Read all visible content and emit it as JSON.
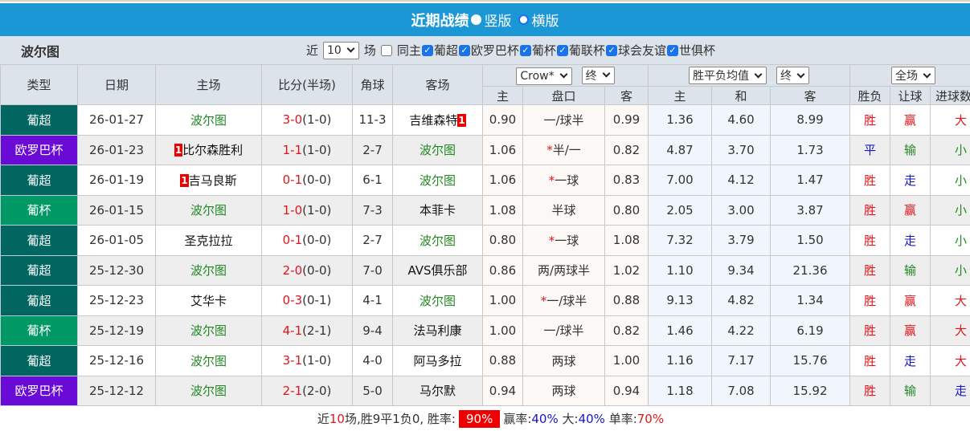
{
  "header": {
    "title": "近期战绩",
    "view_vertical": "竖版",
    "view_horizontal": "横版"
  },
  "filter": {
    "team": "波尔图",
    "recent_label": "近",
    "recent_value": "10",
    "matches_label": "场",
    "same_home": "同主",
    "competitions": [
      "葡超",
      "欧罗巴杯",
      "葡杯",
      "葡联杯",
      "球会友谊",
      "世俱杯"
    ]
  },
  "columns": {
    "type": "类型",
    "date": "日期",
    "home": "主场",
    "score": "比分(半场)",
    "corner": "角球",
    "away": "客场",
    "odds_company": "Crow*",
    "odds_stage": "终",
    "euro_select": "胜平负均值",
    "euro_stage": "终",
    "scope": "全场",
    "odds_home": "主",
    "handicap": "盘口",
    "odds_away": "客",
    "euro_home": "主",
    "euro_draw": "和",
    "euro_away": "客",
    "result": "胜负",
    "ah_result": "让球",
    "goals": "进球数"
  },
  "type_colors": {
    "葡超": "#00665f",
    "欧罗巴杯": "#6a0ad6",
    "葡杯": "#009966"
  },
  "rows": [
    {
      "type": "葡超",
      "date": "26-01-27",
      "home": "波尔图",
      "home_rank": "",
      "score": "3-0",
      "ht": "(1-0)",
      "corner": "11-3",
      "away": "吉维森特",
      "away_rank": "1",
      "oh": "0.90",
      "hc": "一/球半",
      "hc_star": "",
      "oa": "0.99",
      "eh": "1.36",
      "ed": "4.60",
      "ea": "8.99",
      "res": "胜",
      "ah": "赢",
      "ou": "大"
    },
    {
      "type": "欧罗巴杯",
      "date": "26-01-23",
      "home": "比尔森胜利",
      "home_rank": "1",
      "score": "1-1",
      "ht": "(1-0)",
      "corner": "2-7",
      "away": "波尔图",
      "away_rank": "",
      "oh": "1.06",
      "hc": "半/一",
      "hc_star": "*",
      "oa": "0.82",
      "eh": "4.87",
      "ed": "3.70",
      "ea": "1.73",
      "res": "平",
      "ah": "输",
      "ou": "小"
    },
    {
      "type": "葡超",
      "date": "26-01-19",
      "home": "吉马良斯",
      "home_rank": "1",
      "score": "0-1",
      "ht": "(0-0)",
      "corner": "6-1",
      "away": "波尔图",
      "away_rank": "",
      "oh": "1.06",
      "hc": "一球",
      "hc_star": "*",
      "oa": "0.83",
      "eh": "7.00",
      "ed": "4.12",
      "ea": "1.47",
      "res": "胜",
      "ah": "走",
      "ou": "小"
    },
    {
      "type": "葡杯",
      "date": "26-01-15",
      "home": "波尔图",
      "home_rank": "",
      "score": "1-0",
      "ht": "(1-0)",
      "corner": "7-3",
      "away": "本菲卡",
      "away_rank": "",
      "oh": "1.08",
      "hc": "半球",
      "hc_star": "",
      "oa": "0.80",
      "eh": "2.05",
      "ed": "3.00",
      "ea": "3.87",
      "res": "胜",
      "ah": "赢",
      "ou": "小"
    },
    {
      "type": "葡超",
      "date": "26-01-05",
      "home": "圣克拉拉",
      "home_rank": "",
      "score": "0-1",
      "ht": "(0-0)",
      "corner": "2-7",
      "away": "波尔图",
      "away_rank": "",
      "oh": "0.80",
      "hc": "一球",
      "hc_star": "*",
      "oa": "1.08",
      "eh": "7.32",
      "ed": "3.79",
      "ea": "1.50",
      "res": "胜",
      "ah": "走",
      "ou": "小"
    },
    {
      "type": "葡超",
      "date": "25-12-30",
      "home": "波尔图",
      "home_rank": "",
      "score": "2-0",
      "ht": "(0-0)",
      "corner": "7-0",
      "away": "AVS俱乐部",
      "away_rank": "",
      "oh": "0.86",
      "hc": "两/两球半",
      "hc_star": "",
      "oa": "1.02",
      "eh": "1.10",
      "ed": "9.34",
      "ea": "21.36",
      "res": "胜",
      "ah": "输",
      "ou": "小"
    },
    {
      "type": "葡超",
      "date": "25-12-23",
      "home": "艾华卡",
      "home_rank": "",
      "score": "0-3",
      "ht": "(0-1)",
      "corner": "4-1",
      "away": "波尔图",
      "away_rank": "",
      "oh": "1.00",
      "hc": "一/球半",
      "hc_star": "*",
      "oa": "0.88",
      "eh": "9.13",
      "ed": "4.82",
      "ea": "1.34",
      "res": "胜",
      "ah": "赢",
      "ou": "大"
    },
    {
      "type": "葡杯",
      "date": "25-12-19",
      "home": "波尔图",
      "home_rank": "",
      "score": "4-1",
      "ht": "(2-1)",
      "corner": "9-4",
      "away": "法马利康",
      "away_rank": "",
      "oh": "1.00",
      "hc": "一/球半",
      "hc_star": "",
      "oa": "0.82",
      "eh": "1.46",
      "ed": "4.22",
      "ea": "6.19",
      "res": "胜",
      "ah": "赢",
      "ou": "大"
    },
    {
      "type": "葡超",
      "date": "25-12-16",
      "home": "波尔图",
      "home_rank": "",
      "score": "3-1",
      "ht": "(1-0)",
      "corner": "4-0",
      "away": "阿马多拉",
      "away_rank": "",
      "oh": "0.88",
      "hc": "两球",
      "hc_star": "",
      "oa": "1.00",
      "eh": "1.16",
      "ed": "7.17",
      "ea": "15.76",
      "res": "胜",
      "ah": "走",
      "ou": "大"
    },
    {
      "type": "欧罗巴杯",
      "date": "25-12-12",
      "home": "波尔图",
      "home_rank": "",
      "score": "2-1",
      "ht": "(2-0)",
      "corner": "5-0",
      "away": "马尔默",
      "away_rank": "",
      "oh": "0.94",
      "hc": "两球",
      "hc_star": "",
      "oa": "0.94",
      "eh": "1.18",
      "ed": "7.08",
      "ea": "15.92",
      "res": "胜",
      "ah": "输",
      "ou": "走"
    }
  ],
  "footer": {
    "p1": "近",
    "count": "10",
    "p2": "场,胜9平1负0, 胜率:",
    "win_rate": "90%",
    "ah_label": "赢率:",
    "ah_rate": "40%",
    "over_label": "大:",
    "over_rate": "40%",
    "odd_label": "单率:",
    "odd_rate": "70%"
  }
}
